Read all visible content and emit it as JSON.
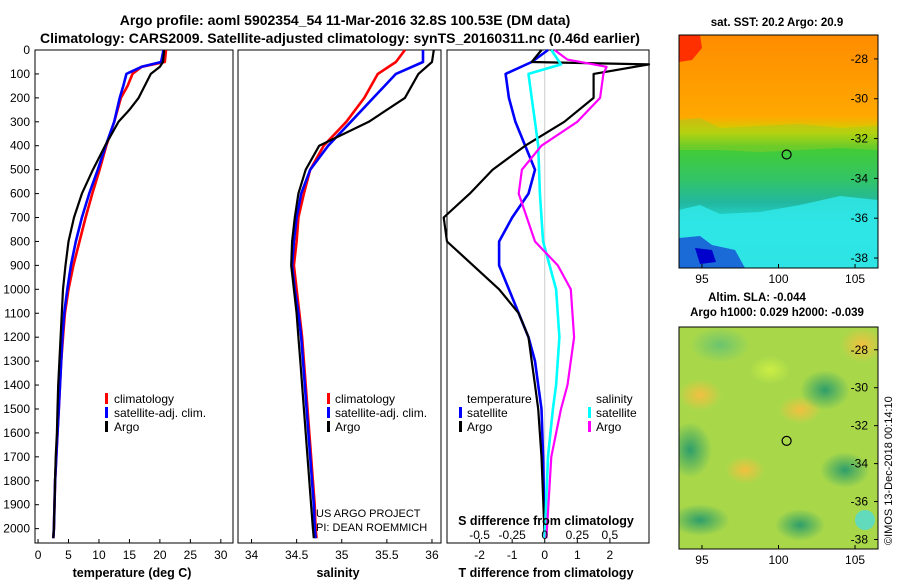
{
  "title_line1": "Argo profile: aoml 5902354_54 11-Mar-2016 32.8S 100.53E (DM data)",
  "title_line2": "Climatology: CARS2009. Satellite-adjusted climatology: synTS_20160311.nc (0.46d earlier)",
  "colors": {
    "climatology": "#ff0000",
    "satellite_adj": "#0000ff",
    "argo": "#000000",
    "satellite_s": "#00ffff",
    "argo_s": "#ff00ff"
  },
  "chart_data": [
    {
      "type": "line",
      "name": "temperature-profile",
      "xlabel": "temperature (deg C)",
      "ylabel": "depth",
      "xlim": [
        -0.5,
        32
      ],
      "ylim": [
        0,
        2060
      ],
      "x_ticks": [
        0,
        5,
        10,
        15,
        20,
        25,
        30
      ],
      "y_ticks": [
        0,
        100,
        200,
        300,
        400,
        500,
        600,
        700,
        800,
        900,
        1000,
        1100,
        1200,
        1300,
        1400,
        1500,
        1600,
        1700,
        1800,
        1900,
        2000
      ],
      "legend": [
        "climatology",
        "satellite-adj. clim.",
        "Argo"
      ],
      "series": [
        {
          "name": "climatology",
          "color": "#ff0000",
          "points": [
            [
              21,
              0
            ],
            [
              20.8,
              50
            ],
            [
              17,
              70
            ],
            [
              15.5,
              100
            ],
            [
              14.7,
              150
            ],
            [
              13.6,
              200
            ],
            [
              12.5,
              300
            ],
            [
              11.2,
              400
            ],
            [
              10.1,
              500
            ],
            [
              8.9,
              600
            ],
            [
              7.8,
              700
            ],
            [
              6.8,
              800
            ],
            [
              5.8,
              900
            ],
            [
              5,
              1000
            ],
            [
              4.4,
              1100
            ],
            [
              4.1,
              1200
            ],
            [
              3.8,
              1300
            ],
            [
              3.6,
              1400
            ],
            [
              3.4,
              1500
            ],
            [
              3.2,
              1600
            ],
            [
              3.0,
              1700
            ],
            [
              2.8,
              1800
            ],
            [
              2.7,
              1900
            ],
            [
              2.6,
              2000
            ],
            [
              2.5,
              2040
            ]
          ]
        },
        {
          "name": "satellite-adj. clim.",
          "color": "#0000ff",
          "points": [
            [
              20.6,
              0
            ],
            [
              20.2,
              50
            ],
            [
              17,
              70
            ],
            [
              14.5,
              100
            ],
            [
              14,
              150
            ],
            [
              13.4,
              200
            ],
            [
              12.5,
              300
            ],
            [
              11.1,
              400
            ],
            [
              9.8,
              500
            ],
            [
              8.4,
              600
            ],
            [
              7.2,
              700
            ],
            [
              6.2,
              800
            ],
            [
              5.4,
              900
            ],
            [
              4.8,
              1000
            ],
            [
              4.3,
              1100
            ],
            [
              4.0,
              1200
            ],
            [
              3.8,
              1300
            ],
            [
              3.6,
              1400
            ],
            [
              3.4,
              1500
            ],
            [
              3.2,
              1600
            ],
            [
              3.0,
              1700
            ],
            [
              2.8,
              1800
            ],
            [
              2.7,
              1900
            ],
            [
              2.6,
              2000
            ],
            [
              2.5,
              2040
            ]
          ]
        },
        {
          "name": "Argo",
          "color": "#000000",
          "points": [
            [
              20.7,
              0
            ],
            [
              20.5,
              50
            ],
            [
              20,
              70
            ],
            [
              18.5,
              100
            ],
            [
              17.5,
              150
            ],
            [
              16.5,
              200
            ],
            [
              15,
              250
            ],
            [
              13.2,
              300
            ],
            [
              11,
              400
            ],
            [
              9,
              500
            ],
            [
              7.2,
              600
            ],
            [
              5.9,
              700
            ],
            [
              5.0,
              800
            ],
            [
              4.5,
              900
            ],
            [
              4.1,
              1000
            ],
            [
              3.9,
              1100
            ],
            [
              3.7,
              1200
            ],
            [
              3.5,
              1300
            ],
            [
              3.3,
              1400
            ],
            [
              3.2,
              1500
            ],
            [
              3.1,
              1600
            ],
            [
              2.9,
              1700
            ],
            [
              2.8,
              1800
            ],
            [
              2.7,
              1900
            ],
            [
              2.6,
              2000
            ],
            [
              2.5,
              2040
            ]
          ]
        }
      ]
    },
    {
      "type": "line",
      "name": "salinity-profile",
      "xlabel": "salinity",
      "ylabel": "depth",
      "xlim": [
        33.85,
        36.1
      ],
      "ylim": [
        0,
        2060
      ],
      "x_ticks": [
        34,
        34.5,
        35,
        35.5,
        36
      ],
      "legend": [
        "climatology",
        "satellite-adj. clim.",
        "Argo"
      ],
      "series": [
        {
          "name": "climatology",
          "color": "#ff0000",
          "points": [
            [
              35.7,
              0
            ],
            [
              35.6,
              50
            ],
            [
              35.4,
              100
            ],
            [
              35.25,
              200
            ],
            [
              35.05,
              300
            ],
            [
              34.8,
              400
            ],
            [
              34.65,
              500
            ],
            [
              34.58,
              600
            ],
            [
              34.52,
              700
            ],
            [
              34.5,
              800
            ],
            [
              34.47,
              900
            ],
            [
              34.5,
              1000
            ],
            [
              34.53,
              1100
            ],
            [
              34.56,
              1200
            ],
            [
              34.58,
              1300
            ],
            [
              34.6,
              1400
            ],
            [
              34.62,
              1500
            ],
            [
              34.64,
              1600
            ],
            [
              34.66,
              1700
            ],
            [
              34.68,
              1800
            ],
            [
              34.7,
              1900
            ],
            [
              34.71,
              2000
            ],
            [
              34.72,
              2040
            ]
          ]
        },
        {
          "name": "satellite-adj. clim.",
          "color": "#0000ff",
          "points": [
            [
              35.9,
              0
            ],
            [
              35.9,
              50
            ],
            [
              35.6,
              100
            ],
            [
              35.35,
              200
            ],
            [
              35.1,
              300
            ],
            [
              34.85,
              400
            ],
            [
              34.65,
              500
            ],
            [
              34.55,
              600
            ],
            [
              34.5,
              700
            ],
            [
              34.47,
              800
            ],
            [
              34.45,
              900
            ],
            [
              34.48,
              1000
            ],
            [
              34.52,
              1100
            ],
            [
              34.55,
              1200
            ],
            [
              34.57,
              1300
            ],
            [
              34.59,
              1400
            ],
            [
              34.61,
              1500
            ],
            [
              34.63,
              1600
            ],
            [
              34.65,
              1700
            ],
            [
              34.67,
              1800
            ],
            [
              34.69,
              1900
            ],
            [
              34.7,
              2000
            ],
            [
              34.71,
              2040
            ]
          ]
        },
        {
          "name": "Argo",
          "color": "#000000",
          "points": [
            [
              36.02,
              0
            ],
            [
              36.0,
              50
            ],
            [
              35.85,
              100
            ],
            [
              35.7,
              200
            ],
            [
              35.3,
              300
            ],
            [
              34.75,
              400
            ],
            [
              34.6,
              500
            ],
            [
              34.52,
              600
            ],
            [
              34.48,
              700
            ],
            [
              34.45,
              800
            ],
            [
              34.44,
              900
            ],
            [
              34.47,
              1000
            ],
            [
              34.5,
              1100
            ],
            [
              34.52,
              1200
            ],
            [
              34.54,
              1300
            ],
            [
              34.56,
              1400
            ],
            [
              34.58,
              1500
            ],
            [
              34.6,
              1600
            ],
            [
              34.62,
              1700
            ],
            [
              34.64,
              1800
            ],
            [
              34.66,
              1900
            ],
            [
              34.68,
              2000
            ],
            [
              34.69,
              2040
            ]
          ]
        }
      ],
      "credit_line1": "US ARGO PROJECT",
      "credit_line2": "PI: DEAN ROEMMICH"
    },
    {
      "type": "line",
      "name": "difference-profile",
      "xlabel": "T difference from climatology",
      "x2label": "S difference from climatology",
      "xlim": [
        -3,
        3.2
      ],
      "ylim": [
        0,
        2060
      ],
      "x_ticks": [
        -2,
        -1,
        0,
        1,
        2
      ],
      "x2_ticks": [
        "-0.5",
        "-0.25",
        "0",
        "0.25",
        "0.5"
      ],
      "x2_values": [
        -0.5,
        -0.25,
        0,
        0.25,
        0.5
      ],
      "legend_temperature_title": "temperature",
      "legend_salinity_title": "salinity",
      "legend_temperature": [
        "satellite",
        "Argo"
      ],
      "legend_salinity": [
        "satellite",
        "Argo"
      ],
      "series": [
        {
          "name": "T satellite",
          "color": "#0000ff",
          "points": [
            [
              0.1,
              0
            ],
            [
              -0.4,
              50
            ],
            [
              -1.2,
              100
            ],
            [
              -1.1,
              200
            ],
            [
              -0.9,
              300
            ],
            [
              -0.6,
              400
            ],
            [
              -0.3,
              500
            ],
            [
              -0.5,
              600
            ],
            [
              -1.0,
              700
            ],
            [
              -1.4,
              800
            ],
            [
              -1.4,
              900
            ],
            [
              -1.1,
              1000
            ],
            [
              -0.8,
              1100
            ],
            [
              -0.5,
              1200
            ],
            [
              -0.3,
              1300
            ],
            [
              -0.2,
              1400
            ],
            [
              -0.1,
              1500
            ],
            [
              -0.05,
              1700
            ],
            [
              0,
              2040
            ]
          ]
        },
        {
          "name": "T Argo",
          "color": "#000000",
          "points": [
            [
              -0.1,
              0
            ],
            [
              -0.4,
              50
            ],
            [
              3.2,
              60
            ],
            [
              1.5,
              100
            ],
            [
              1.5,
              200
            ],
            [
              0.6,
              300
            ],
            [
              -0.6,
              400
            ],
            [
              -1.6,
              500
            ],
            [
              -2.3,
              600
            ],
            [
              -3.1,
              700
            ],
            [
              -3,
              800
            ],
            [
              -2.2,
              900
            ],
            [
              -1.4,
              1000
            ],
            [
              -0.8,
              1100
            ],
            [
              -0.5,
              1200
            ],
            [
              -0.4,
              1300
            ],
            [
              -0.3,
              1400
            ],
            [
              -0.2,
              1500
            ],
            [
              -0.1,
              1700
            ],
            [
              0,
              2040
            ]
          ]
        },
        {
          "name": "S satellite",
          "color": "#00ffff",
          "points": [
            [
              0.2,
              0
            ],
            [
              0.5,
              60
            ],
            [
              -0.5,
              100
            ],
            [
              -0.4,
              200
            ],
            [
              -0.3,
              300
            ],
            [
              -0.2,
              400
            ],
            [
              -0.15,
              600
            ],
            [
              -0.05,
              800
            ],
            [
              0.15,
              900
            ],
            [
              0.35,
              1000
            ],
            [
              0.45,
              1200
            ],
            [
              0.35,
              1400
            ],
            [
              0.25,
              1500
            ],
            [
              0.1,
              1700
            ],
            [
              0,
              2040
            ]
          ]
        },
        {
          "name": "S Argo",
          "color": "#ff00ff",
          "points": [
            [
              0.3,
              0
            ],
            [
              0.7,
              40
            ],
            [
              1.9,
              70
            ],
            [
              1.8,
              100
            ],
            [
              1.7,
              200
            ],
            [
              1.0,
              300
            ],
            [
              -0.1,
              400
            ],
            [
              -0.7,
              500
            ],
            [
              -0.8,
              600
            ],
            [
              -0.3,
              800
            ],
            [
              0.4,
              900
            ],
            [
              0.8,
              1000
            ],
            [
              0.9,
              1200
            ],
            [
              0.7,
              1400
            ],
            [
              0.5,
              1500
            ],
            [
              0.2,
              1700
            ],
            [
              0.05,
              2040
            ]
          ]
        }
      ]
    },
    {
      "type": "heatmap",
      "name": "sst-map",
      "title": "sat. SST: 20.2  Argo: 20.9",
      "x_ticks": [
        95,
        100,
        105
      ],
      "y_ticks": [
        -28,
        -30,
        -32,
        -34,
        -36,
        -38
      ],
      "xlim": [
        93.5,
        106.5
      ],
      "ylim": [
        -38.5,
        -26.8
      ],
      "argo_position": [
        100.53,
        -32.8
      ]
    },
    {
      "type": "heatmap",
      "name": "sla-map",
      "title_line1": "Altim. SLA: -0.044",
      "title_line2": "Argo h1000: 0.029 h2000: -0.039",
      "x_ticks": [
        95,
        100,
        105
      ],
      "y_ticks": [
        -28,
        -30,
        -32,
        -34,
        -36,
        -38
      ],
      "xlim": [
        93.5,
        106.5
      ],
      "ylim": [
        -38.5,
        -26.8
      ],
      "argo_position": [
        100.53,
        -32.8
      ]
    }
  ],
  "timestamp": "©IMOS 13-Dec-2018 00:14:10"
}
